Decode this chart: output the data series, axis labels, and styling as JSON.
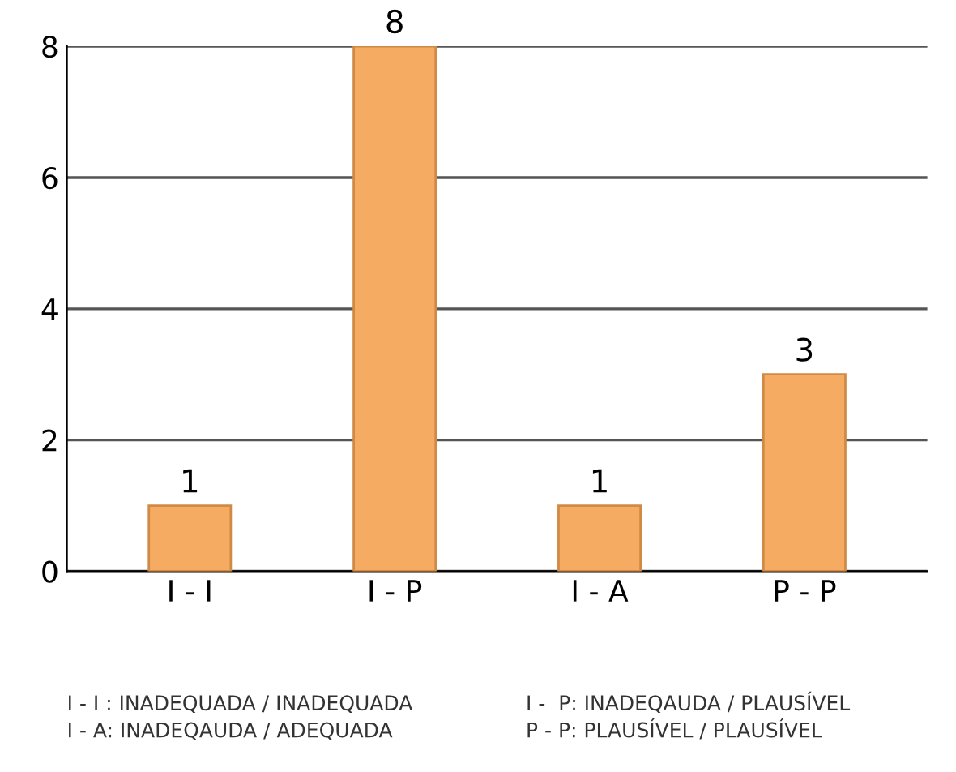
{
  "chart_data": {
    "type": "bar",
    "categories": [
      "I - I",
      "I - P",
      "I - A",
      "P - P"
    ],
    "values": [
      1,
      8,
      1,
      3
    ],
    "color": "#f5ab62",
    "ylim": [
      0,
      8
    ],
    "yticks": [
      0,
      2,
      4,
      6,
      8
    ],
    "grid": "y",
    "data_labels": true,
    "annotations": [
      "I - I : INADEQUADA / INADEQUADA",
      "I -  P: INADEQAUDA / PLAUSÍVEL",
      "I - A: INADEQAUDA / ADEQUADA",
      "P - P: PLAUSÍVEL / PLAUSÍVEL"
    ]
  }
}
